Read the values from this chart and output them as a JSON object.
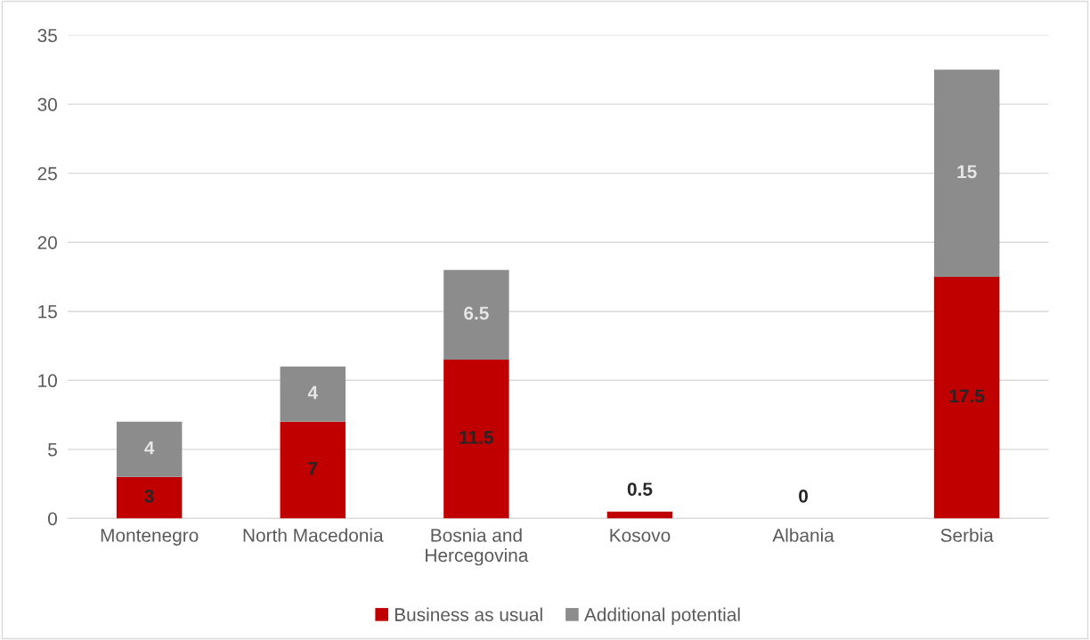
{
  "chart_data": {
    "type": "bar",
    "stacked": true,
    "categories": [
      "Montenegro",
      "North Macedonia",
      "Bosnia and\nHercegovina",
      "Kosovo",
      "Albania",
      "Serbia"
    ],
    "series": [
      {
        "name": "Business as usual",
        "color": "#c00000",
        "values": [
          3,
          7,
          11.5,
          0.5,
          0,
          17.5
        ],
        "value_labels": [
          "3",
          "7",
          "11.5",
          "0.5",
          "0",
          "17.5"
        ]
      },
      {
        "name": "Additional potential",
        "color": "#8c8c8c",
        "values": [
          4,
          4,
          6.5,
          0,
          0,
          15
        ],
        "value_labels": [
          "4",
          "4",
          "6.5",
          null,
          null,
          "15"
        ]
      }
    ],
    "ylim": [
      0,
      35
    ],
    "yticks": [
      0,
      5,
      10,
      15,
      20,
      25,
      30,
      35
    ],
    "grid": "y",
    "legend": "bottom"
  }
}
